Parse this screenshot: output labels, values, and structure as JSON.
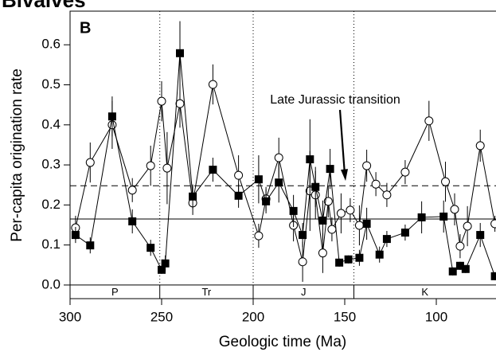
{
  "chart_data": {
    "type": "scatter",
    "title": "Bivalves",
    "panel_label": "B",
    "xlabel": "Geologic time (Ma)",
    "ylabel": "Per-capita origination rate",
    "xlim": [
      300,
      67.4
    ],
    "xticks": [
      300,
      250,
      200,
      150,
      100
    ],
    "ylim": [
      -0.034,
      0.684
    ],
    "yticks": [
      {
        "value": 0,
        "label": "0.0"
      },
      0.1,
      0.2,
      0.3,
      0.4,
      0.5,
      0.6
    ],
    "hlines": [
      {
        "value": 0.248,
        "style": "dashed"
      },
      {
        "value": 0.165,
        "style": "solid"
      }
    ],
    "vlines": [
      251,
      200,
      145
    ],
    "periods": [
      {
        "label": "P",
        "start": 300,
        "end": 251
      },
      {
        "label": "Tr",
        "start": 251,
        "end": 200
      },
      {
        "label": "J",
        "start": 200,
        "end": 145
      },
      {
        "label": "K",
        "start": 145,
        "end": 66
      }
    ],
    "annotation": {
      "text": "Late Jurassic transition",
      "x": 150,
      "y": 0.26
    },
    "series": [
      {
        "marker": "circle",
        "color": "#000000",
        "x": [
          297,
          289,
          277,
          266,
          256,
          250,
          247,
          240,
          233,
          222,
          208,
          197,
          193,
          186,
          178,
          173,
          169,
          166,
          162,
          159,
          157,
          152,
          147,
          142,
          138,
          133,
          127,
          117,
          104,
          95,
          90,
          87,
          83,
          76,
          68
        ],
        "values": [
          0.143,
          0.306,
          0.4,
          0.237,
          0.298,
          0.459,
          0.292,
          0.453,
          0.205,
          0.501,
          0.274,
          0.123,
          0.215,
          0.318,
          0.149,
          0.058,
          0.235,
          0.225,
          0.08,
          0.209,
          0.139,
          0.179,
          0.187,
          0.149,
          0.298,
          0.252,
          0.225,
          0.282,
          0.41,
          0.258,
          0.189,
          0.097,
          0.147,
          0.348,
          0.153
        ],
        "errors": [
          0.03,
          0.05,
          0.06,
          0.03,
          0.05,
          0.05,
          0.09,
          0.06,
          0.03,
          0.05,
          0.05,
          0.03,
          0.03,
          0.05,
          0.04,
          0.05,
          0.1,
          0.06,
          0.05,
          0.04,
          0.03,
          0.05,
          0.03,
          0.05,
          0.04,
          0.03,
          0.03,
          0.03,
          0.05,
          0.05,
          0.04,
          0.03,
          0.05,
          0.04,
          0.02
        ]
      },
      {
        "marker": "square",
        "color": "#000000",
        "x": [
          297,
          289,
          277,
          266,
          256,
          250,
          248,
          240,
          233,
          222,
          208,
          197,
          193,
          186,
          178,
          173,
          169,
          166,
          162,
          158,
          153,
          148,
          142,
          138,
          131,
          127,
          117,
          108,
          96,
          91,
          87,
          84,
          76,
          68
        ],
        "values": [
          0.125,
          0.099,
          0.421,
          0.159,
          0.093,
          0.038,
          0.054,
          0.579,
          0.221,
          0.288,
          0.223,
          0.264,
          0.209,
          0.256,
          0.185,
          0.125,
          0.314,
          0.245,
          0.161,
          0.29,
          0.056,
          0.064,
          0.068,
          0.153,
          0.076,
          0.115,
          0.131,
          0.169,
          0.171,
          0.034,
          0.048,
          0.04,
          0.125,
          0.022
        ],
        "errors": [
          0.02,
          0.02,
          0.05,
          0.03,
          0.02,
          0.01,
          0.02,
          0.08,
          0.03,
          0.03,
          0.03,
          0.06,
          0.03,
          0.05,
          0.04,
          0.03,
          0.1,
          0.05,
          0.05,
          0.05,
          0.01,
          0.01,
          0.02,
          0.04,
          0.02,
          0.02,
          0.02,
          0.04,
          0.04,
          0.01,
          0.01,
          0.01,
          0.03,
          0.01
        ]
      }
    ]
  }
}
